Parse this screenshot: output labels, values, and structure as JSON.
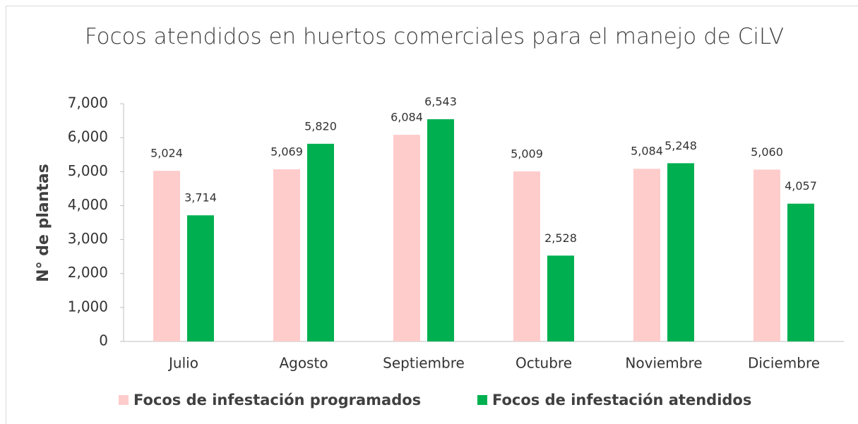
{
  "chart_data": {
    "type": "bar",
    "title": "Focos atendidos en huertos comerciales para el manejo de CiLV",
    "y_label": "N° de plantas",
    "categories": [
      "Julio",
      "Agosto",
      "Septiembre",
      "Octubre",
      "Noviembre",
      "Diciembre"
    ],
    "series": [
      {
        "name": "Focos de infestación programados",
        "color": "#ffcccc",
        "values": [
          5024,
          5069,
          6084,
          5009,
          5084,
          5060
        ],
        "value_labels": [
          "5,024",
          "5,069",
          "6,084",
          "5,009",
          "5,084",
          "5,060"
        ]
      },
      {
        "name": "Focos de infestación atendidos",
        "color": "#00b050",
        "values": [
          3714,
          5820,
          6543,
          2528,
          5248,
          4057
        ],
        "value_labels": [
          "3,714",
          "5,820",
          "6,543",
          "2,528",
          "5,248",
          "4,057"
        ]
      }
    ],
    "ylim": [
      0,
      7000
    ],
    "yticks": [
      0,
      {
        "value": 1000,
        "label": "1,000"
      },
      {
        "value": 2000,
        "label": "2,000"
      },
      {
        "value": 3000,
        "label": "3,000"
      },
      {
        "value": 4000,
        "label": "4,000"
      },
      {
        "value": 5000,
        "label": "5,000"
      },
      {
        "value": 6000,
        "label": "6,000"
      },
      {
        "value": 7000,
        "label": "7,000"
      }
    ],
    "legend": "bottom"
  }
}
